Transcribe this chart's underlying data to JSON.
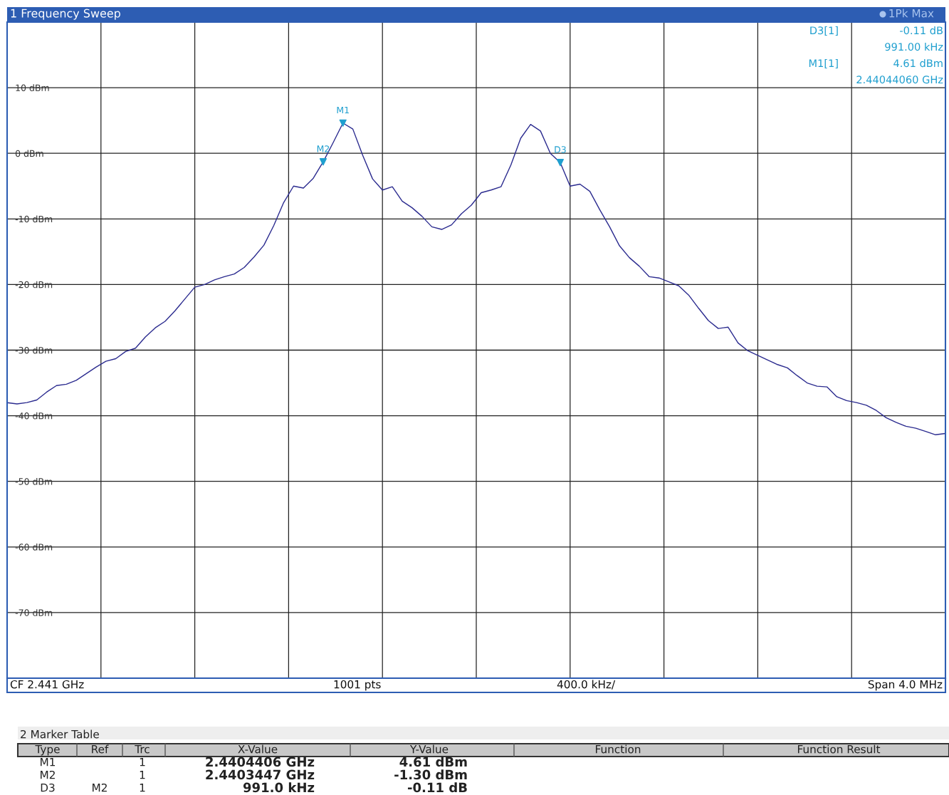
{
  "chart_data": [
    {
      "type": "line",
      "title": "1 Frequency Sweep",
      "categories": [
        null,
        null,
        null,
        null,
        null,
        null,
        null,
        null,
        null,
        null,
        null,
        null,
        null,
        null,
        null,
        null,
        null,
        null,
        null,
        null,
        null,
        null,
        null,
        null,
        null,
        null,
        null,
        null,
        null,
        null,
        null,
        null,
        null,
        null,
        null,
        null,
        null,
        null,
        null,
        null,
        null,
        null,
        null,
        null,
        null,
        null,
        null,
        null,
        null,
        null,
        null,
        null,
        null,
        null,
        null,
        null,
        null,
        null,
        null,
        null,
        null,
        null,
        null,
        null,
        null,
        null,
        null,
        null,
        null,
        null,
        null,
        null,
        null,
        null,
        null,
        null,
        null,
        null,
        null,
        null,
        null,
        null,
        null,
        null,
        null,
        null,
        null,
        null,
        null,
        null,
        null,
        null,
        null,
        null,
        null,
        null
      ],
      "series": [
        {
          "color": "#2b2b8f",
          "values": [
            -38.0,
            -38.2,
            -38.0,
            -37.6,
            -36.4,
            -35.4,
            -35.2,
            -34.6,
            -33.6,
            -32.6,
            -31.7,
            -31.3,
            -30.2,
            -29.7,
            -28.0,
            -26.6,
            -25.6,
            -24.0,
            -22.2,
            -20.4,
            -20.0,
            -19.3,
            -18.8,
            -18.4,
            -17.4,
            -15.8,
            -14.0,
            -11.0,
            -7.5,
            -5.0,
            -5.3,
            -3.8,
            -1.3,
            1.6,
            4.61,
            3.7,
            -0.3,
            -3.9,
            -5.6,
            -5.1,
            -7.3,
            -8.3,
            -9.6,
            -11.2,
            -11.6,
            -10.9,
            -9.2,
            -7.9,
            -6.0,
            -5.6,
            -5.1,
            -1.8,
            2.3,
            4.4,
            3.4,
            0.0,
            -1.41,
            -5.0,
            -4.7,
            -5.8,
            -8.6,
            -11.2,
            -14.1,
            -15.9,
            -17.2,
            -18.8,
            -19.0,
            -19.6,
            -20.2,
            -21.6,
            -23.6,
            -25.5,
            -26.7,
            -26.5,
            -28.9,
            -30.1,
            -30.8,
            -31.5,
            -32.2,
            -32.7,
            -33.9,
            -35.0,
            -35.5,
            -35.6,
            -37.1,
            -37.7,
            -38.0,
            -38.4,
            -39.2,
            -40.3,
            -41.0,
            -41.6,
            -41.9,
            -42.4,
            -42.9,
            -42.7
          ]
        },
        {
          "type": "scatter",
          "name": "M1",
          "color": "#1f9fcf",
          "marker": "triangle",
          "values": [
            null,
            null,
            null,
            null,
            null,
            null,
            null,
            null,
            null,
            null,
            null,
            null,
            null,
            null,
            null,
            null,
            null,
            null,
            null,
            null,
            null,
            null,
            null,
            null,
            null,
            null,
            null,
            null,
            null,
            null,
            null,
            null,
            null,
            null,
            4.61,
            null,
            null,
            null,
            null,
            null,
            null,
            null,
            null,
            null,
            null,
            null,
            null,
            null,
            null,
            null,
            null,
            null,
            null,
            null,
            null,
            null,
            null,
            null,
            null,
            null,
            null,
            null,
            null,
            null,
            null,
            null,
            null,
            null,
            null,
            null,
            null,
            null,
            null,
            null,
            null,
            null,
            null,
            null,
            null,
            null,
            null,
            null,
            null,
            null,
            null,
            null,
            null,
            null,
            null,
            null,
            null,
            null,
            null,
            null,
            null,
            null
          ]
        },
        {
          "type": "scatter",
          "name": "M2",
          "color": "#1f9fcf",
          "marker": "triangle",
          "values": [
            null,
            null,
            null,
            null,
            null,
            null,
            null,
            null,
            null,
            null,
            null,
            null,
            null,
            null,
            null,
            null,
            null,
            null,
            null,
            null,
            null,
            null,
            null,
            null,
            null,
            null,
            null,
            null,
            null,
            null,
            null,
            null,
            -1.3,
            null,
            null,
            null,
            null,
            null,
            null,
            null,
            null,
            null,
            null,
            null,
            null,
            null,
            null,
            null,
            null,
            null,
            null,
            null,
            null,
            null,
            null,
            null,
            null,
            null,
            null,
            null,
            null,
            null,
            null,
            null,
            null,
            null,
            null,
            null,
            null,
            null,
            null,
            null,
            null,
            null,
            null,
            null,
            null,
            null,
            null,
            null,
            null,
            null,
            null,
            null,
            null,
            null,
            null,
            null,
            null,
            null,
            null,
            null,
            null,
            null,
            null,
            null
          ]
        },
        {
          "type": "scatter",
          "name": "D3",
          "color": "#1f9fcf",
          "marker": "triangle",
          "values": [
            null,
            null,
            null,
            null,
            null,
            null,
            null,
            null,
            null,
            null,
            null,
            null,
            null,
            null,
            null,
            null,
            null,
            null,
            null,
            null,
            null,
            null,
            null,
            null,
            null,
            null,
            null,
            null,
            null,
            null,
            null,
            null,
            null,
            null,
            null,
            null,
            null,
            null,
            null,
            null,
            null,
            null,
            null,
            null,
            null,
            null,
            null,
            null,
            null,
            null,
            null,
            null,
            null,
            null,
            null,
            null,
            -1.41,
            null,
            null,
            null,
            null,
            null,
            null,
            null,
            null,
            null,
            null,
            null,
            null,
            null,
            null,
            null,
            null,
            null,
            null,
            null,
            null,
            null,
            null,
            null,
            null,
            null,
            null,
            null,
            null,
            null,
            null,
            null,
            null,
            null,
            null,
            null,
            null,
            null,
            null,
            null
          ]
        }
      ],
      "ylim": [
        -80,
        20
      ],
      "yticks": [
        {
          "value": -70,
          "label": "-70 dBm"
        },
        {
          "value": -60,
          "label": "-60 dBm"
        },
        {
          "value": -50,
          "label": "-50 dBm"
        },
        {
          "value": -40,
          "label": "-40 dBm"
        },
        {
          "value": -30,
          "label": "-30 dBm"
        },
        {
          "value": -20,
          "label": "-20 dBm"
        },
        {
          "value": -10,
          "label": "-10 dBm"
        },
        {
          "value": 0,
          "label": "0 dBm"
        },
        {
          "value": 10,
          "label": "10 dBm"
        }
      ],
      "tick_labels": "y",
      "grid": true,
      "legend": false,
      "annotations": [
        "D3[1]",
        "-0.11 dB",
        "991.00 kHz",
        "M1[1]",
        "4.61 dBm",
        "2.44044060 GHz",
        "1Pk Max",
        "CF 2.441 GHz",
        "1001 pts",
        "400.0 kHz/",
        "Span 4.0 MHz"
      ]
    },
    {
      "type": "other",
      "title": "2 Marker Table",
      "annotations": [
        "Type",
        "Ref",
        "Trc",
        "X-Value",
        "Y-Value",
        "Function",
        "Function Result",
        "M1",
        "1",
        "2.4404406 GHz",
        "4.61 dBm",
        "M2",
        "1",
        "2.4403447 GHz",
        "-1.30 dBm",
        "D3",
        "M2",
        "1",
        "991.0 kHz",
        "-0.11 dB"
      ]
    }
  ]
}
